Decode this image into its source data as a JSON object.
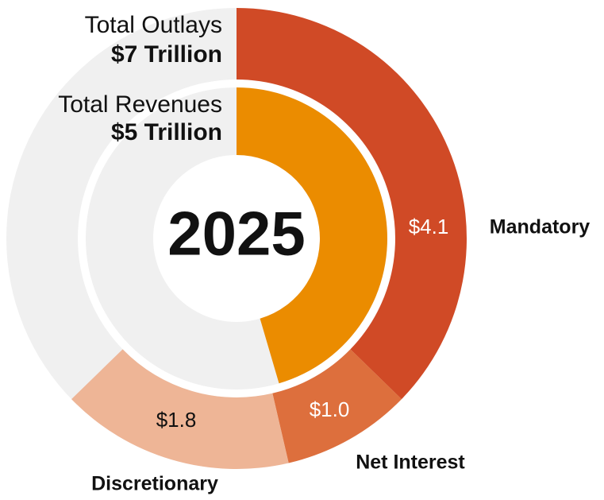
{
  "chart_data": {
    "type": "nested-donut",
    "center_label": "2025",
    "ylim": [
      0,
      11
    ],
    "track_color": "#f0f0f0",
    "outer": {
      "name": "Total Outlays",
      "total_label": "$7 Trillion",
      "categories": [
        "Mandatory",
        "Net Interest",
        "Discretionary"
      ],
      "values": [
        4.1,
        1.0,
        1.8
      ],
      "value_labels": [
        "$4.1",
        "$1.0",
        "$1.8"
      ],
      "colors": [
        "#d04a26",
        "#dd6f3d",
        "#eeb596"
      ]
    },
    "inner": {
      "name": "Total Revenues",
      "total_label": "$5 Trillion",
      "value": 5,
      "color": "#eb8c00"
    }
  }
}
